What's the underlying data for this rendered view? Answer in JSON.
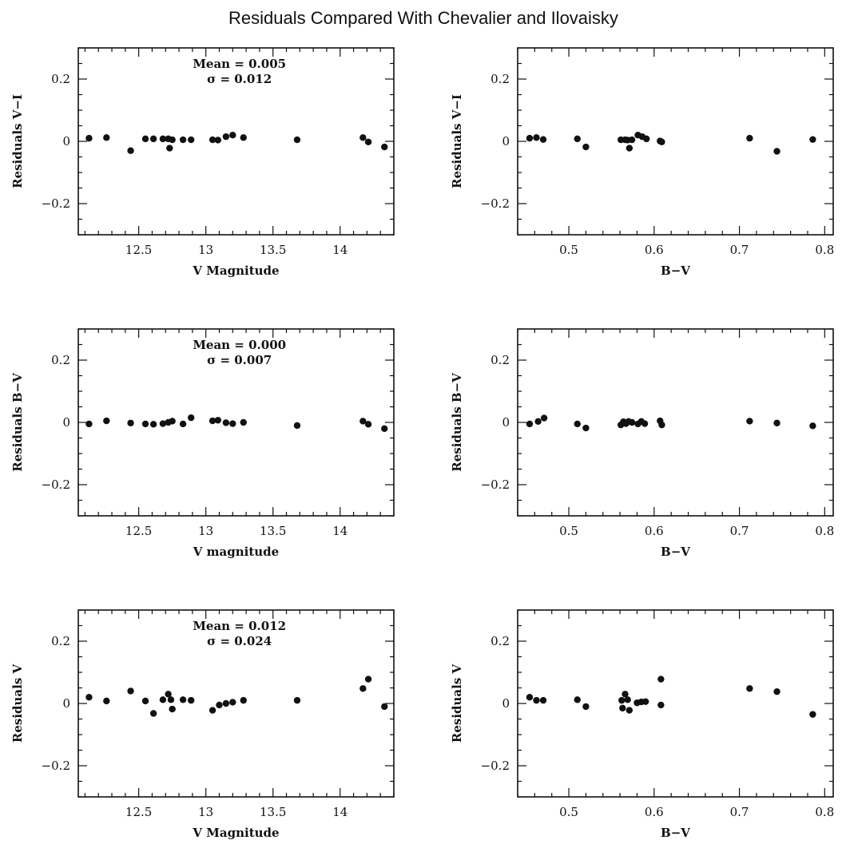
{
  "figure_title": "Residuals Compared With Chevalier and Ilovaisky",
  "chart_data": [
    {
      "type": "scatter",
      "xlabel": "V Magnitude",
      "ylabel": "Residuals V−I",
      "xlim": [
        12.05,
        14.4
      ],
      "ylim": [
        -0.3,
        0.3
      ],
      "xticks": [
        12.5,
        13,
        13.5,
        14
      ],
      "xtick_labels": [
        "12.5",
        "13",
        "13.5",
        "14"
      ],
      "yticks": [
        -0.2,
        0,
        0.2
      ],
      "ytick_labels": [
        "−0.2",
        "0",
        "0.2"
      ],
      "annotation": {
        "mean": "Mean = 0.005",
        "sigma": "σ = 0.012"
      },
      "points": [
        {
          "x": 12.13,
          "y": 0.01
        },
        {
          "x": 12.26,
          "y": 0.012
        },
        {
          "x": 12.44,
          "y": -0.03
        },
        {
          "x": 12.55,
          "y": 0.008
        },
        {
          "x": 12.61,
          "y": 0.008
        },
        {
          "x": 12.68,
          "y": 0.008
        },
        {
          "x": 12.72,
          "y": 0.008
        },
        {
          "x": 12.73,
          "y": -0.022
        },
        {
          "x": 12.75,
          "y": 0.005
        },
        {
          "x": 12.83,
          "y": 0.005
        },
        {
          "x": 12.89,
          "y": 0.005
        },
        {
          "x": 13.05,
          "y": 0.005
        },
        {
          "x": 13.09,
          "y": 0.004
        },
        {
          "x": 13.15,
          "y": 0.015
        },
        {
          "x": 13.2,
          "y": 0.02
        },
        {
          "x": 13.28,
          "y": 0.012
        },
        {
          "x": 13.68,
          "y": 0.005
        },
        {
          "x": 14.17,
          "y": 0.012
        },
        {
          "x": 14.21,
          "y": -0.002
        },
        {
          "x": 14.33,
          "y": -0.018
        }
      ]
    },
    {
      "type": "scatter",
      "xlabel": "B−V",
      "ylabel": "Residuals V−I",
      "xlim": [
        0.44,
        0.81
      ],
      "ylim": [
        -0.3,
        0.3
      ],
      "xticks": [
        0.5,
        0.6,
        0.7,
        0.8
      ],
      "xtick_labels": [
        "0.5",
        "0.6",
        "0.7",
        "0.8"
      ],
      "yticks": [
        -0.2,
        0,
        0.2
      ],
      "ytick_labels": [
        "−0.2",
        "0",
        "0.2"
      ],
      "annotation": null,
      "points": [
        {
          "x": 0.454,
          "y": 0.01
        },
        {
          "x": 0.462,
          "y": 0.012
        },
        {
          "x": 0.47,
          "y": 0.006
        },
        {
          "x": 0.51,
          "y": 0.008
        },
        {
          "x": 0.52,
          "y": -0.018
        },
        {
          "x": 0.561,
          "y": 0.005
        },
        {
          "x": 0.566,
          "y": 0.005
        },
        {
          "x": 0.569,
          "y": 0.004
        },
        {
          "x": 0.571,
          "y": -0.022
        },
        {
          "x": 0.574,
          "y": 0.005
        },
        {
          "x": 0.581,
          "y": 0.02
        },
        {
          "x": 0.586,
          "y": 0.015
        },
        {
          "x": 0.591,
          "y": 0.008
        },
        {
          "x": 0.607,
          "y": 0.001
        },
        {
          "x": 0.609,
          "y": -0.002
        },
        {
          "x": 0.712,
          "y": 0.01
        },
        {
          "x": 0.744,
          "y": -0.032
        },
        {
          "x": 0.786,
          "y": 0.006
        }
      ]
    },
    {
      "type": "scatter",
      "xlabel": "V magnitude",
      "ylabel": "Residuals B−V",
      "xlim": [
        12.05,
        14.4
      ],
      "ylim": [
        -0.3,
        0.3
      ],
      "xticks": [
        12.5,
        13,
        13.5,
        14
      ],
      "xtick_labels": [
        "12.5",
        "13",
        "13.5",
        "14"
      ],
      "yticks": [
        -0.2,
        0,
        0.2
      ],
      "ytick_labels": [
        "−0.2",
        "0",
        "0.2"
      ],
      "annotation": {
        "mean": "Mean = 0.000",
        "sigma": "σ = 0.007"
      },
      "points": [
        {
          "x": 12.13,
          "y": -0.005
        },
        {
          "x": 12.26,
          "y": 0.005
        },
        {
          "x": 12.44,
          "y": -0.002
        },
        {
          "x": 12.55,
          "y": -0.005
        },
        {
          "x": 12.61,
          "y": -0.006
        },
        {
          "x": 12.68,
          "y": -0.004
        },
        {
          "x": 12.72,
          "y": 0.0
        },
        {
          "x": 12.75,
          "y": 0.004
        },
        {
          "x": 12.83,
          "y": -0.005
        },
        {
          "x": 12.89,
          "y": 0.015
        },
        {
          "x": 13.05,
          "y": 0.005
        },
        {
          "x": 13.09,
          "y": 0.007
        },
        {
          "x": 13.15,
          "y": -0.001
        },
        {
          "x": 13.2,
          "y": -0.004
        },
        {
          "x": 13.28,
          "y": 0.0
        },
        {
          "x": 13.68,
          "y": -0.01
        },
        {
          "x": 14.17,
          "y": 0.004
        },
        {
          "x": 14.21,
          "y": -0.006
        },
        {
          "x": 14.33,
          "y": -0.02
        }
      ]
    },
    {
      "type": "scatter",
      "xlabel": "B−V",
      "ylabel": "Residuals B−V",
      "xlim": [
        0.44,
        0.81
      ],
      "ylim": [
        -0.3,
        0.3
      ],
      "xticks": [
        0.5,
        0.6,
        0.7,
        0.8
      ],
      "xtick_labels": [
        "0.5",
        "0.6",
        "0.7",
        "0.8"
      ],
      "yticks": [
        -0.2,
        0,
        0.2
      ],
      "ytick_labels": [
        "−0.2",
        "0",
        "0.2"
      ],
      "annotation": null,
      "points": [
        {
          "x": 0.454,
          "y": -0.005
        },
        {
          "x": 0.464,
          "y": 0.003
        },
        {
          "x": 0.471,
          "y": 0.014
        },
        {
          "x": 0.51,
          "y": -0.005
        },
        {
          "x": 0.52,
          "y": -0.018
        },
        {
          "x": 0.561,
          "y": -0.008
        },
        {
          "x": 0.564,
          "y": 0.002
        },
        {
          "x": 0.567,
          "y": -0.004
        },
        {
          "x": 0.57,
          "y": 0.003
        },
        {
          "x": 0.574,
          "y": 0.0
        },
        {
          "x": 0.581,
          "y": -0.005
        },
        {
          "x": 0.585,
          "y": 0.003
        },
        {
          "x": 0.589,
          "y": -0.004
        },
        {
          "x": 0.607,
          "y": 0.005
        },
        {
          "x": 0.609,
          "y": -0.008
        },
        {
          "x": 0.712,
          "y": 0.004
        },
        {
          "x": 0.744,
          "y": -0.002
        },
        {
          "x": 0.786,
          "y": -0.011
        }
      ]
    },
    {
      "type": "scatter",
      "xlabel": "V Magnitude",
      "ylabel": "Residuals V",
      "xlim": [
        12.05,
        14.4
      ],
      "ylim": [
        -0.3,
        0.3
      ],
      "xticks": [
        12.5,
        13,
        13.5,
        14
      ],
      "xtick_labels": [
        "12.5",
        "13",
        "13.5",
        "14"
      ],
      "yticks": [
        -0.2,
        0,
        0.2
      ],
      "ytick_labels": [
        "−0.2",
        "0",
        "0.2"
      ],
      "annotation": {
        "mean": "Mean = 0.012",
        "sigma": "σ = 0.024"
      },
      "points": [
        {
          "x": 12.13,
          "y": 0.02
        },
        {
          "x": 12.26,
          "y": 0.008
        },
        {
          "x": 12.44,
          "y": 0.04
        },
        {
          "x": 12.55,
          "y": 0.008
        },
        {
          "x": 12.61,
          "y": -0.032
        },
        {
          "x": 12.68,
          "y": 0.012
        },
        {
          "x": 12.72,
          "y": 0.03
        },
        {
          "x": 12.74,
          "y": 0.012
        },
        {
          "x": 12.75,
          "y": -0.018
        },
        {
          "x": 12.83,
          "y": 0.012
        },
        {
          "x": 12.89,
          "y": 0.01
        },
        {
          "x": 13.05,
          "y": -0.022
        },
        {
          "x": 13.1,
          "y": -0.005
        },
        {
          "x": 13.15,
          "y": 0.0
        },
        {
          "x": 13.2,
          "y": 0.004
        },
        {
          "x": 13.28,
          "y": 0.01
        },
        {
          "x": 13.68,
          "y": 0.01
        },
        {
          "x": 14.17,
          "y": 0.048
        },
        {
          "x": 14.21,
          "y": 0.078
        },
        {
          "x": 14.33,
          "y": -0.01
        }
      ]
    },
    {
      "type": "scatter",
      "xlabel": "B−V",
      "ylabel": "Residuals V",
      "xlim": [
        0.44,
        0.81
      ],
      "ylim": [
        -0.3,
        0.3
      ],
      "xticks": [
        0.5,
        0.6,
        0.7,
        0.8
      ],
      "xtick_labels": [
        "0.5",
        "0.6",
        "0.7",
        "0.8"
      ],
      "yticks": [
        -0.2,
        0,
        0.2
      ],
      "ytick_labels": [
        "−0.2",
        "0",
        "0.2"
      ],
      "annotation": null,
      "points": [
        {
          "x": 0.454,
          "y": 0.02
        },
        {
          "x": 0.462,
          "y": 0.01
        },
        {
          "x": 0.47,
          "y": 0.01
        },
        {
          "x": 0.51,
          "y": 0.012
        },
        {
          "x": 0.52,
          "y": -0.01
        },
        {
          "x": 0.562,
          "y": 0.01
        },
        {
          "x": 0.563,
          "y": -0.015
        },
        {
          "x": 0.566,
          "y": 0.03
        },
        {
          "x": 0.569,
          "y": 0.012
        },
        {
          "x": 0.571,
          "y": -0.022
        },
        {
          "x": 0.58,
          "y": 0.002
        },
        {
          "x": 0.585,
          "y": 0.005
        },
        {
          "x": 0.59,
          "y": 0.006
        },
        {
          "x": 0.608,
          "y": 0.078
        },
        {
          "x": 0.608,
          "y": -0.005
        },
        {
          "x": 0.712,
          "y": 0.048
        },
        {
          "x": 0.744,
          "y": 0.038
        },
        {
          "x": 0.786,
          "y": -0.035
        }
      ]
    }
  ]
}
